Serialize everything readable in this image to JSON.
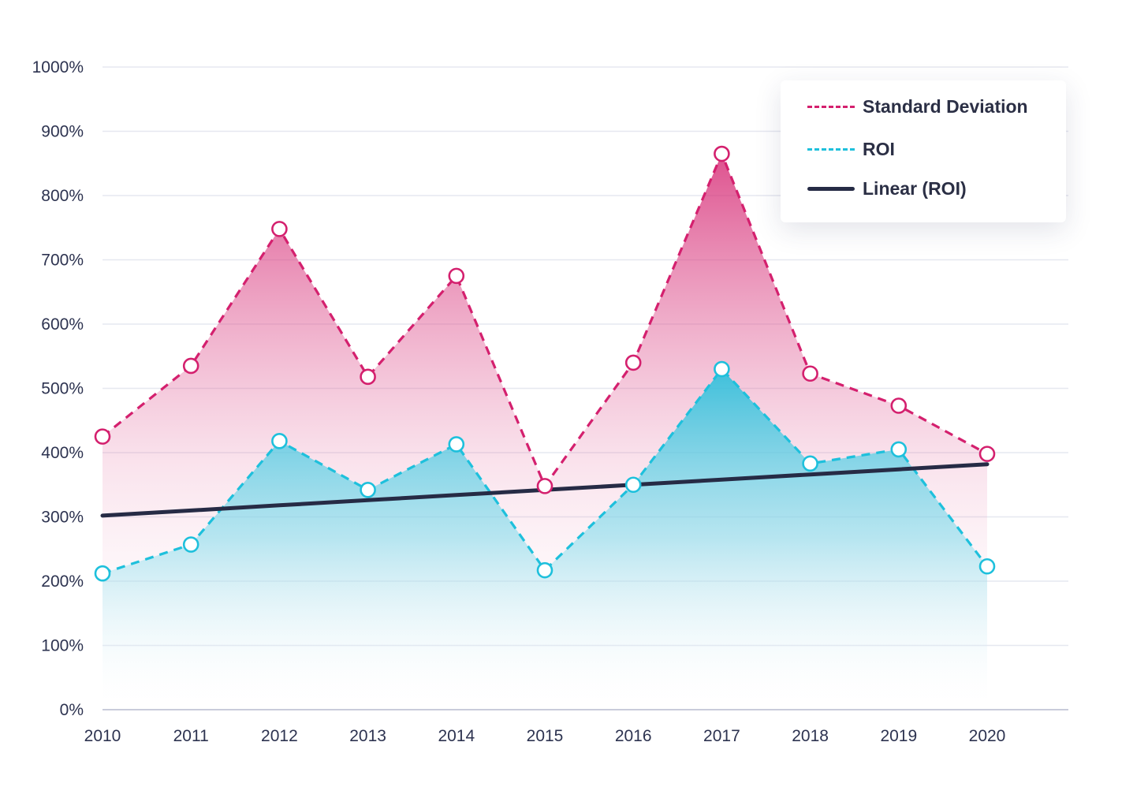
{
  "chart_data": {
    "type": "area",
    "title": "",
    "xlabel": "",
    "ylabel": "",
    "categories": [
      "2010",
      "2011",
      "2012",
      "2013",
      "2014",
      "2015",
      "2016",
      "2017",
      "2018",
      "2019",
      "2020"
    ],
    "ylim": [
      0,
      1000
    ],
    "yticks": [
      "0%",
      "100%",
      "200%",
      "300%",
      "400%",
      "500%",
      "600%",
      "700%",
      "800%",
      "900%",
      "1000%"
    ],
    "grid": true,
    "legend_position": "top-right",
    "series": [
      {
        "name": "Standard Deviation",
        "style": "dashed-area",
        "color": "#d4206e",
        "values": [
          425,
          535,
          748,
          518,
          675,
          348,
          540,
          865,
          523,
          473,
          398
        ]
      },
      {
        "name": "ROI",
        "style": "dashed-area",
        "color": "#1ec0dc",
        "values": [
          212,
          257,
          418,
          342,
          413,
          217,
          350,
          530,
          383,
          405,
          223
        ]
      },
      {
        "name": "Linear (ROI)",
        "style": "solid-line",
        "color": "#262b45",
        "values": [
          302,
          310,
          318,
          326,
          334,
          342,
          350,
          358,
          366,
          374,
          382
        ]
      }
    ]
  }
}
